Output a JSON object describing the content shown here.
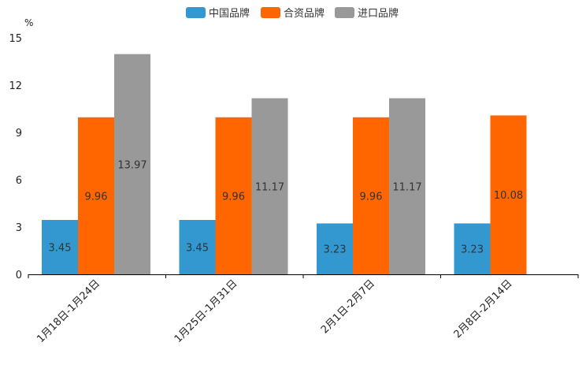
{
  "chart_data": {
    "type": "bar",
    "unit": "%",
    "categories": [
      "1月18日-1月24日",
      "1月25日-1月31日",
      "2月1日-2月7日",
      "2月8日-2月14日"
    ],
    "series": [
      {
        "name": "中国品牌",
        "color": "#3398d0",
        "values": [
          3.45,
          3.45,
          3.23,
          3.23
        ]
      },
      {
        "name": "合资品牌",
        "color": "#ff6600",
        "values": [
          9.96,
          9.96,
          9.96,
          10.08
        ]
      },
      {
        "name": "进口品牌",
        "color": "#999999",
        "values": [
          13.97,
          11.17,
          11.17,
          null
        ]
      }
    ],
    "yticks": [
      0,
      3,
      6,
      9,
      12,
      15
    ],
    "ylim": [
      0,
      15
    ],
    "legend_position": "top-center",
    "grid": false
  }
}
